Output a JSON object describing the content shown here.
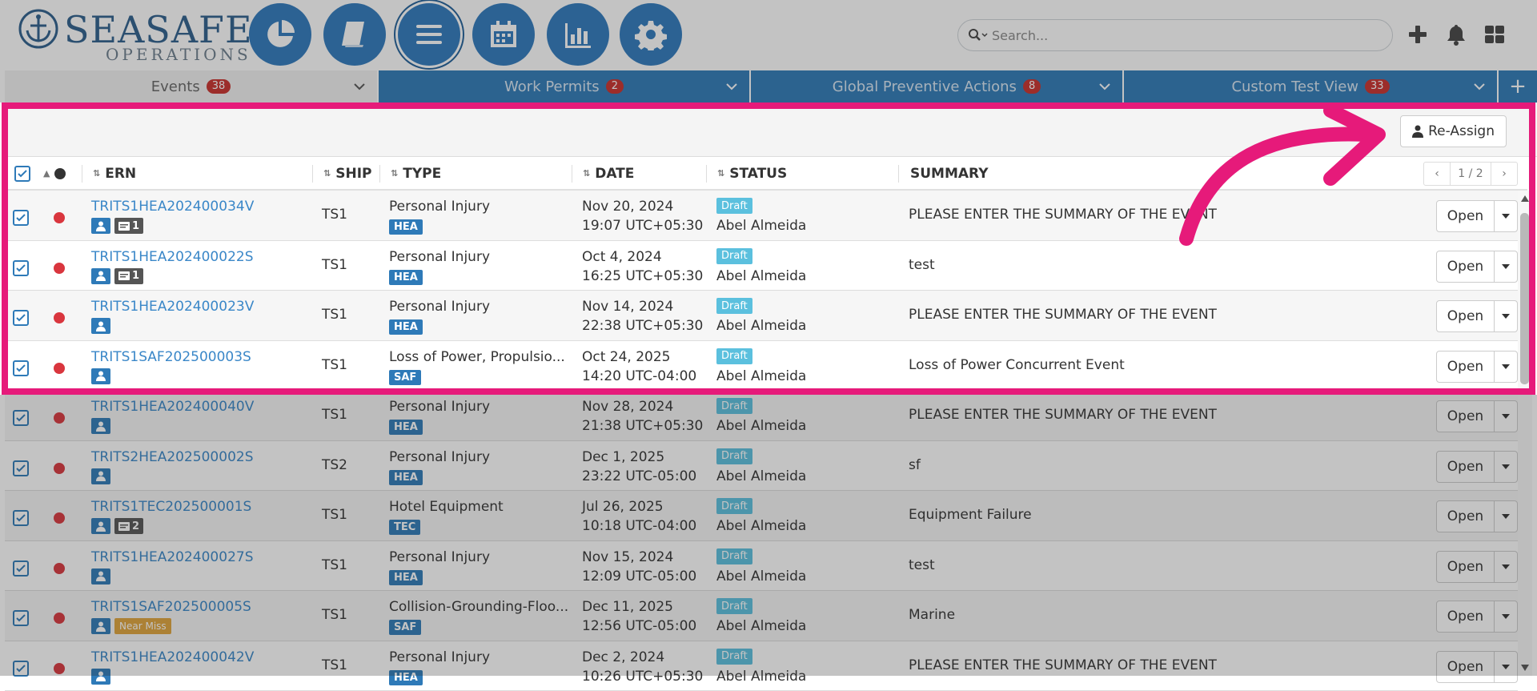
{
  "brand": {
    "title": "SEASAFE",
    "subtitle": "OPERATIONS"
  },
  "nav": [
    {
      "name": "dashboard",
      "icon": "pie-chart-icon"
    },
    {
      "name": "manual",
      "icon": "book-icon"
    },
    {
      "name": "list",
      "icon": "list-icon"
    },
    {
      "name": "calendar",
      "icon": "calendar-icon"
    },
    {
      "name": "reports",
      "icon": "bar-chart-icon"
    },
    {
      "name": "settings",
      "icon": "gear-icon"
    }
  ],
  "search": {
    "placeholder": "Search..."
  },
  "tabs": [
    {
      "label": "Events",
      "count": "38"
    },
    {
      "label": "Work Permits",
      "count": "2"
    },
    {
      "label": "Global Preventive Actions",
      "count": "8"
    },
    {
      "label": "Custom Test View",
      "count": "33"
    }
  ],
  "add_tab_label": "+",
  "toolbar": {
    "reassign_label": "Re-Assign"
  },
  "columns": {
    "ern": "ERN",
    "ship": "SHIP",
    "type": "TYPE",
    "date": "DATE",
    "status": "STATUS",
    "summary": "SUMMARY"
  },
  "pager": {
    "prev": "‹",
    "info": "1 / 2",
    "next": "›"
  },
  "open_label": "Open",
  "colors": {
    "accent": "#2e7ab8",
    "highlight": "#e61a7a",
    "draft": "#5bc0de",
    "priority": "#d9363e"
  },
  "rows": [
    {
      "ern": "TRITS1HEA202400034V",
      "msgs": "1",
      "near_miss": "",
      "ship": "TS1",
      "type": "Personal Injury",
      "type_tag": "HEA",
      "date": "Nov 20, 2024",
      "time": "19:07 UTC+05:30",
      "status": "Draft",
      "owner": "Abel Almeida",
      "summary": "PLEASE ENTER THE SUMMARY OF THE EVENT"
    },
    {
      "ern": "TRITS1HEA202400022S",
      "msgs": "1",
      "near_miss": "",
      "ship": "TS1",
      "type": "Personal Injury",
      "type_tag": "HEA",
      "date": "Oct 4, 2024",
      "time": "16:25 UTC+05:30",
      "status": "Draft",
      "owner": "Abel Almeida",
      "summary": "test"
    },
    {
      "ern": "TRITS1HEA202400023V",
      "msgs": "",
      "near_miss": "",
      "ship": "TS1",
      "type": "Personal Injury",
      "type_tag": "HEA",
      "date": "Nov 14, 2024",
      "time": "22:38 UTC+05:30",
      "status": "Draft",
      "owner": "Abel Almeida",
      "summary": "PLEASE ENTER THE SUMMARY OF THE EVENT"
    },
    {
      "ern": "TRITS1SAF202500003S",
      "msgs": "",
      "near_miss": "",
      "ship": "TS1",
      "type": "Loss of Power, Propulsio...",
      "type_tag": "SAF",
      "date": "Oct 24, 2025",
      "time": "14:20 UTC-04:00",
      "status": "Draft",
      "owner": "Abel Almeida",
      "summary": "Loss of Power Concurrent Event"
    },
    {
      "ern": "TRITS1HEA202400040V",
      "msgs": "",
      "near_miss": "",
      "ship": "TS1",
      "type": "Personal Injury",
      "type_tag": "HEA",
      "date": "Nov 28, 2024",
      "time": "21:38 UTC+05:30",
      "status": "Draft",
      "owner": "Abel Almeida",
      "summary": "PLEASE ENTER THE SUMMARY OF THE EVENT"
    },
    {
      "ern": "TRITS2HEA202500002S",
      "msgs": "",
      "near_miss": "",
      "ship": "TS2",
      "type": "Personal Injury",
      "type_tag": "HEA",
      "date": "Dec 1, 2025",
      "time": "23:22 UTC-05:00",
      "status": "Draft",
      "owner": "Abel Almeida",
      "summary": "sf"
    },
    {
      "ern": "TRITS1TEC202500001S",
      "msgs": "2",
      "near_miss": "",
      "ship": "TS1",
      "type": "Hotel Equipment",
      "type_tag": "TEC",
      "date": "Jul 26, 2025",
      "time": "10:18 UTC-04:00",
      "status": "Draft",
      "owner": "Abel Almeida",
      "summary": "Equipment Failure"
    },
    {
      "ern": "TRITS1HEA202400027S",
      "msgs": "",
      "near_miss": "",
      "ship": "TS1",
      "type": "Personal Injury",
      "type_tag": "HEA",
      "date": "Nov 15, 2024",
      "time": "12:09 UTC-05:00",
      "status": "Draft",
      "owner": "Abel Almeida",
      "summary": "test"
    },
    {
      "ern": "TRITS1SAF202500005S",
      "msgs": "",
      "near_miss": "Near Miss",
      "ship": "TS1",
      "type": "Collision-Grounding-Floo...",
      "type_tag": "SAF",
      "date": "Dec 11, 2025",
      "time": "12:56 UTC-05:00",
      "status": "Draft",
      "owner": "Abel Almeida",
      "summary": "Marine"
    },
    {
      "ern": "TRITS1HEA202400042V",
      "msgs": "",
      "near_miss": "",
      "ship": "TS1",
      "type": "Personal Injury",
      "type_tag": "HEA",
      "date": "Dec 2, 2024",
      "time": "10:26 UTC+05:30",
      "status": "Draft",
      "owner": "Abel Almeida",
      "summary": "PLEASE ENTER THE SUMMARY OF THE EVENT"
    }
  ]
}
